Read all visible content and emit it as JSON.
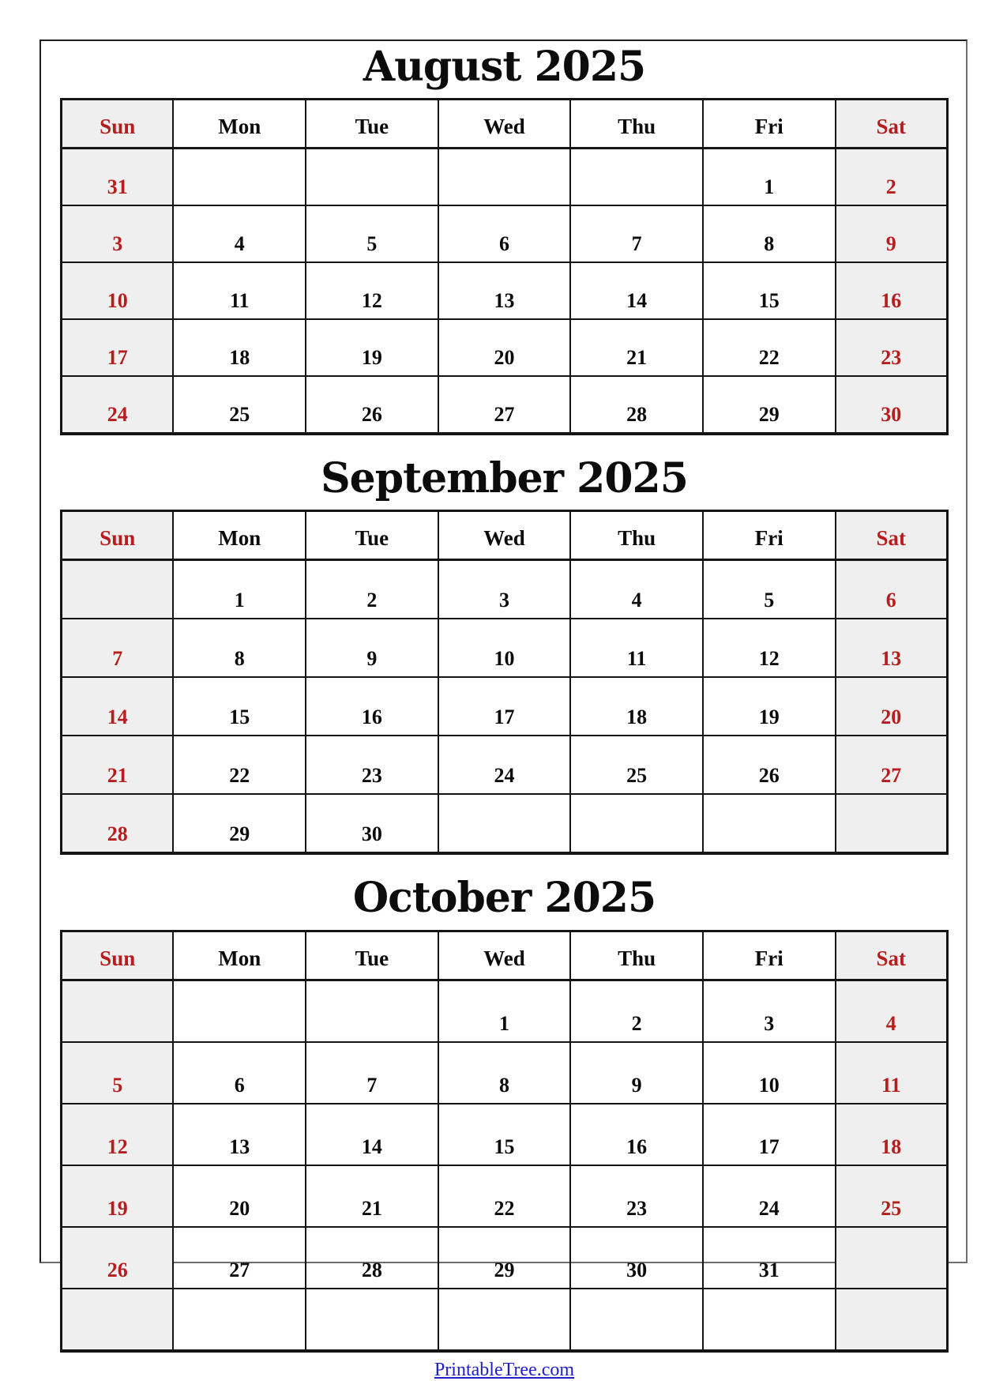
{
  "page": {
    "footer_link": "PrintableTree.com",
    "colors": {
      "accent_red": "#B71D1D",
      "weekend_bg": "#F0EFEF",
      "link_blue": "#2020C8",
      "grid_border": "#141414"
    }
  },
  "weekdays": [
    "Sun",
    "Mon",
    "Tue",
    "Wed",
    "Thu",
    "Fri",
    "Sat"
  ],
  "months": [
    {
      "title": "August 2025",
      "rows": [
        [
          "31",
          "",
          "",
          "",
          "",
          "1",
          "2"
        ],
        [
          "3",
          "4",
          "5",
          "6",
          "7",
          "8",
          "9"
        ],
        [
          "10",
          "11",
          "12",
          "13",
          "14",
          "15",
          "16"
        ],
        [
          "17",
          "18",
          "19",
          "20",
          "21",
          "22",
          "23"
        ],
        [
          "24",
          "25",
          "26",
          "27",
          "28",
          "29",
          "30"
        ]
      ]
    },
    {
      "title": "September 2025",
      "rows": [
        [
          "",
          "1",
          "2",
          "3",
          "4",
          "5",
          "6"
        ],
        [
          "7",
          "8",
          "9",
          "10",
          "11",
          "12",
          "13"
        ],
        [
          "14",
          "15",
          "16",
          "17",
          "18",
          "19",
          "20"
        ],
        [
          "21",
          "22",
          "23",
          "24",
          "25",
          "26",
          "27"
        ],
        [
          "28",
          "29",
          "30",
          "",
          "",
          "",
          ""
        ]
      ]
    },
    {
      "title": "October 2025",
      "rows": [
        [
          "",
          "",
          "",
          "1",
          "2",
          "3",
          "4"
        ],
        [
          "5",
          "6",
          "7",
          "8",
          "9",
          "10",
          "11"
        ],
        [
          "12",
          "13",
          "14",
          "15",
          "16",
          "17",
          "18"
        ],
        [
          "19",
          "20",
          "21",
          "22",
          "23",
          "24",
          "25"
        ],
        [
          "26",
          "27",
          "28",
          "29",
          "30",
          "31",
          ""
        ],
        [
          "",
          "",
          "",
          "",
          "",
          "",
          ""
        ]
      ]
    }
  ]
}
